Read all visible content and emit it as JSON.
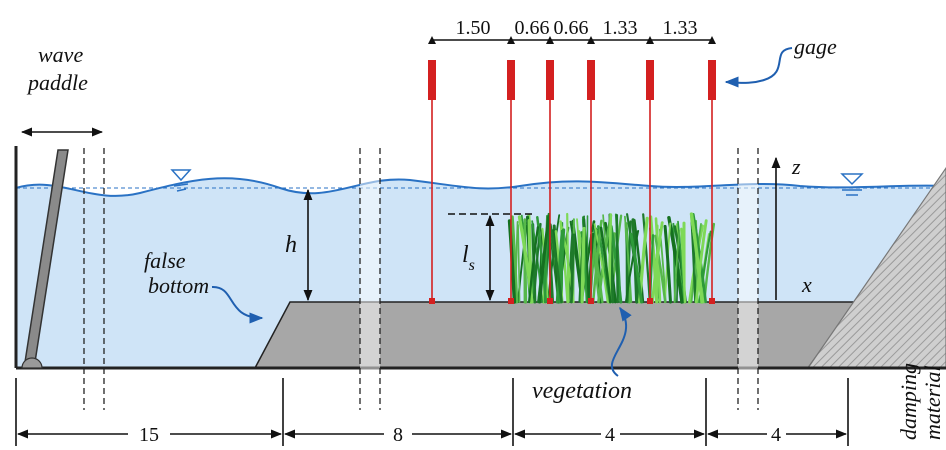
{
  "labels": {
    "wave_paddle_line1": "wave",
    "wave_paddle_line2": "paddle",
    "gage": "gage",
    "false_bottom_line1": "false",
    "false_bottom_line2": "bottom",
    "h": "h",
    "ls_main": "l",
    "ls_sub": "s",
    "vegetation": "vegetation",
    "damping_line1": "damping",
    "damping_line2": "material",
    "axis_x": "x",
    "axis_z": "z"
  },
  "gage_spacings": [
    "1.50",
    "0.66",
    "0.66",
    "1.33",
    "1.33"
  ],
  "bottom_dimensions": [
    "15",
    "8",
    "4",
    "4"
  ],
  "colors": {
    "water": "#cfe4f7",
    "water_line": "#2a72c4",
    "gage_red": "#d42020",
    "false_bottom": "#a7a7a7",
    "damping": "#c8c8c8",
    "vegetation_dark": "#1e7a2a",
    "vegetation_light": "#7ed957"
  }
}
